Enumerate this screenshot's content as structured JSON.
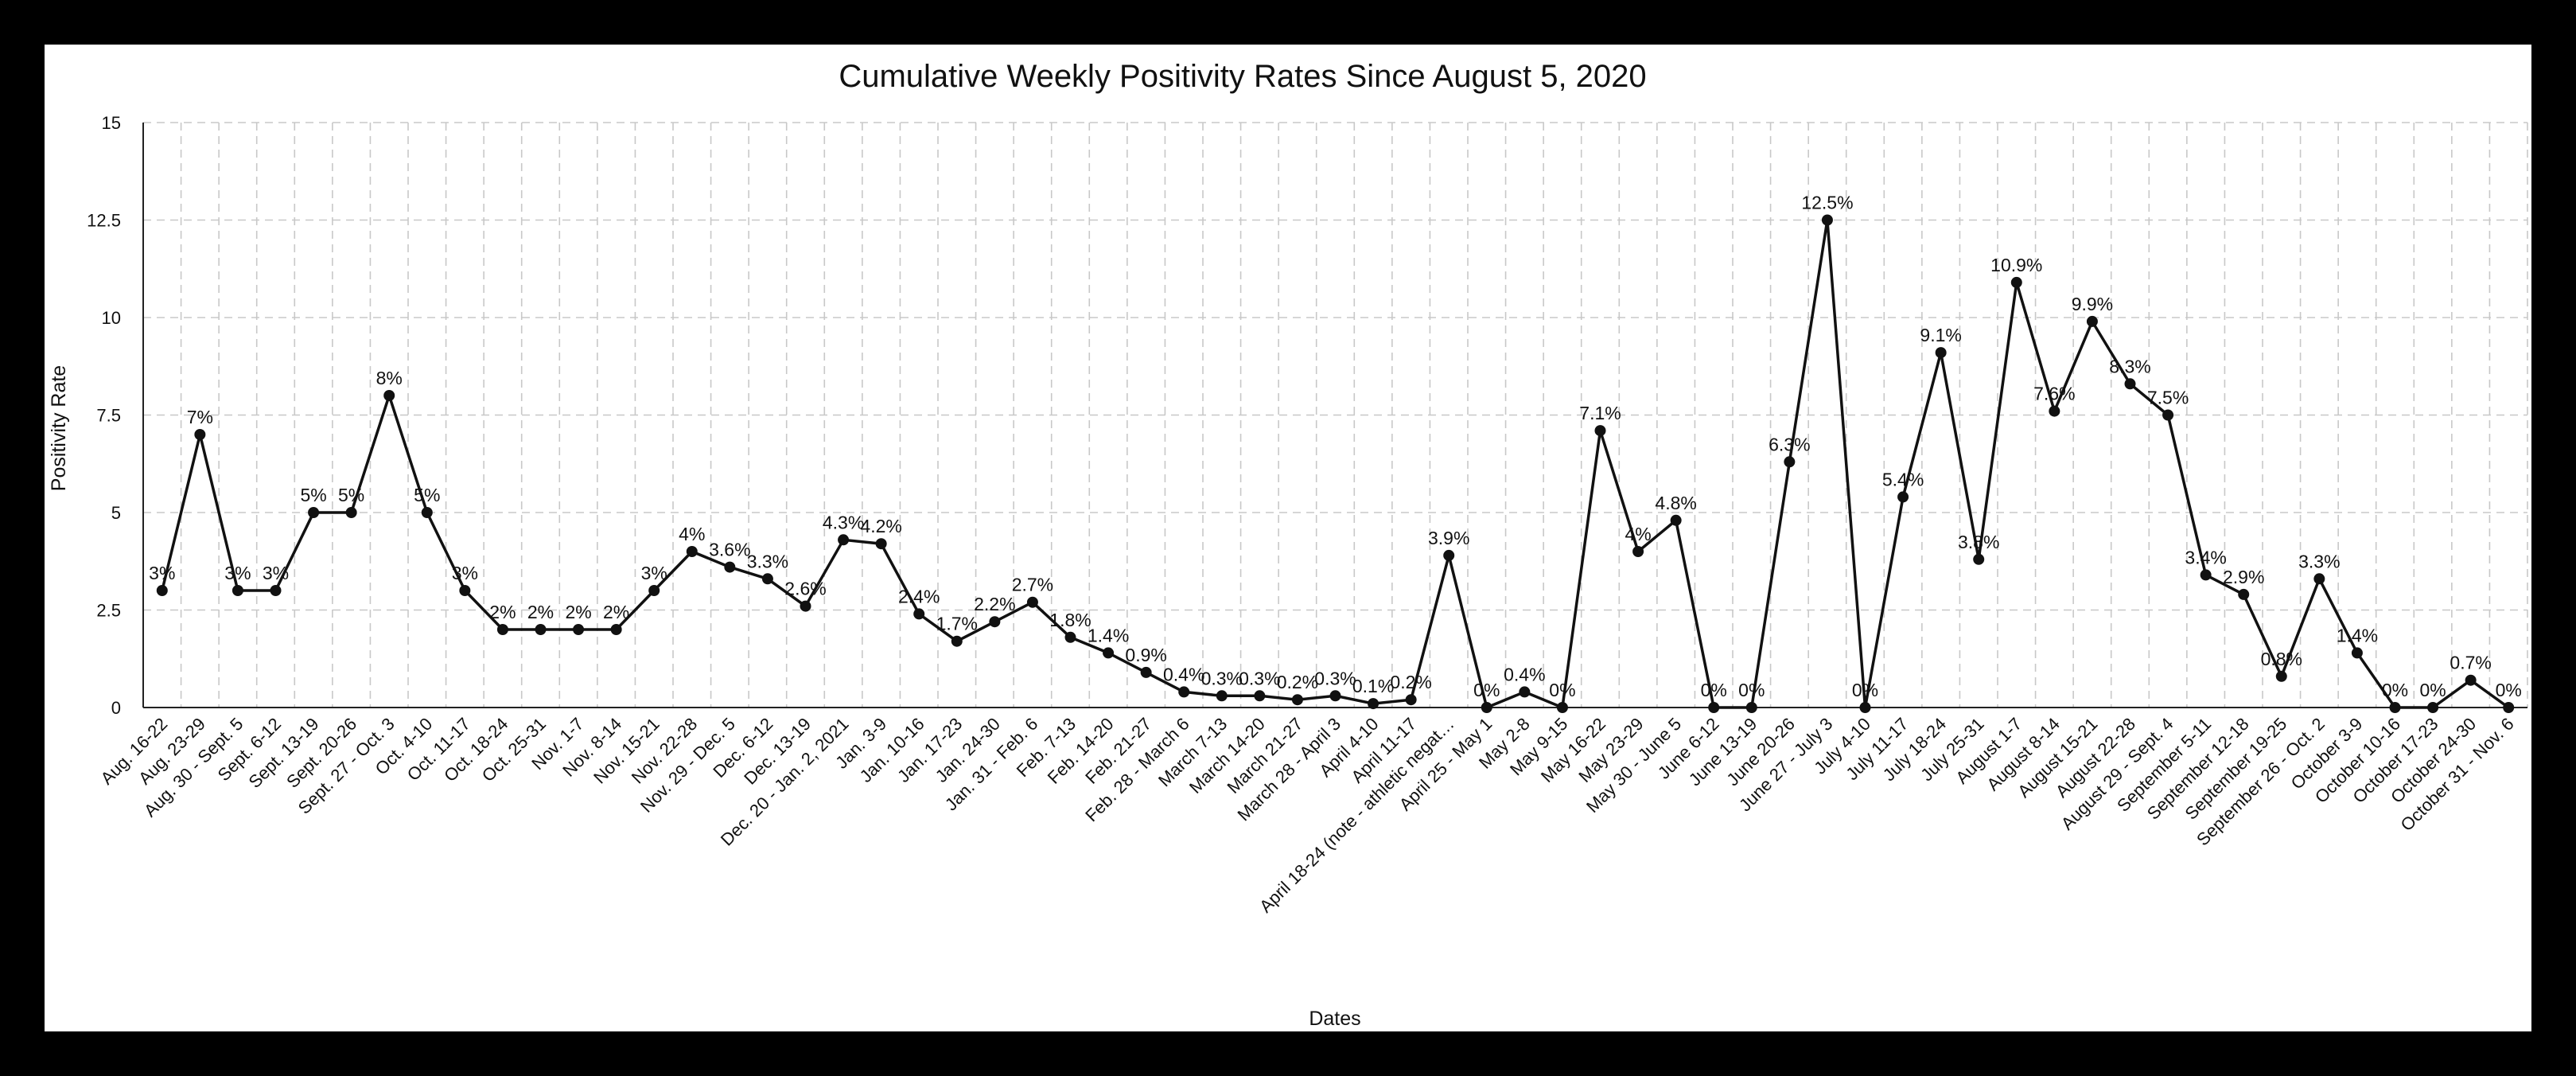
{
  "chart_data": {
    "type": "line",
    "title": "Cumulative Weekly Positivity Rates Since August 5, 2020",
    "xlabel": "Dates",
    "ylabel": "Positivity Rate",
    "ylim": [
      0,
      15
    ],
    "yticks": [
      "0",
      "2.5",
      "5",
      "7.5",
      "10",
      "12.5",
      "15"
    ],
    "grid": true,
    "legend": "none",
    "line_color": "#111111",
    "categories": [
      "Aug. 16-22",
      "Aug. 23-29",
      "Aug. 30 - Sept. 5",
      "Sept. 6-12",
      "Sept. 13-19",
      "Sept. 20-26",
      "Sept. 27 - Oct. 3",
      "Oct. 4-10",
      "Oct. 11-17",
      "Oct. 18-24",
      "Oct. 25-31",
      "Nov. 1-7",
      "Nov. 8-14",
      "Nov. 15-21",
      "Nov. 22-28",
      "Nov. 29 - Dec. 5",
      "Dec. 6-12",
      "Dec. 13-19",
      "Dec. 20 - Jan. 2, 2021",
      "Jan. 3-9",
      "Jan. 10-16",
      "Jan. 17-23",
      "Jan. 24-30",
      "Jan. 31 - Feb. 6",
      "Feb. 7-13",
      "Feb. 14-20",
      "Feb. 21-27",
      "Feb. 28 - March 6",
      "March 7-13",
      "March 14-20",
      "March 21-27",
      "March 28 - April 3",
      "April 4-10",
      "April 11-17",
      "April 18-24 (note - athletic negat…",
      "April 25 - May 1",
      "May 2-8",
      "May 9-15",
      "May 16-22",
      "May 23-29",
      "May 30 - June 5",
      "June 6-12",
      "June 13-19",
      "June 20-26",
      "June 27 - July 3",
      "July 4-10",
      "July 11-17",
      "July 18-24",
      "July 25-31",
      "August 1-7",
      "August 8-14",
      "August 15-21",
      "August 22-28",
      "August 29 - Sept. 4",
      "September 5-11",
      "September 12-18",
      "September 19-25",
      "September 26 - Oct. 2",
      "October 3-9",
      "October 10-16",
      "October 17-23",
      "October 24-30",
      "October 31 - Nov. 6"
    ],
    "values": [
      3,
      7,
      3,
      3,
      5,
      5,
      8,
      5,
      3,
      2,
      2,
      2,
      2,
      3,
      4,
      3.6,
      3.3,
      2.6,
      4.3,
      4.2,
      2.4,
      1.7,
      2.2,
      2.7,
      1.8,
      1.4,
      0.9,
      0.4,
      0.3,
      0.3,
      0.2,
      0.3,
      0.1,
      0.2,
      3.9,
      0,
      0.4,
      0,
      7.1,
      4,
      4.8,
      0,
      0,
      6.3,
      12.5,
      0,
      5.4,
      9.1,
      3.8,
      10.9,
      7.6,
      9.9,
      8.3,
      7.5,
      3.4,
      2.9,
      0.8,
      3.3,
      1.4,
      0,
      0,
      0.7,
      0
    ],
    "data_labels": [
      "3%",
      "7%",
      "3%",
      "3%",
      "5%",
      "5%",
      "8%",
      "5%",
      "3%",
      "2%",
      "2%",
      "2%",
      "2%",
      "3%",
      "4%",
      "3.6%",
      "3.3%",
      "2.6%",
      "4.3%",
      "4.2%",
      "2.4%",
      "1.7%",
      "2.2%",
      "2.7%",
      "1.8%",
      "1.4%",
      "0.9%",
      "0.4%",
      "0.3%",
      "0.3%",
      "0.2%",
      "0.3%",
      "0.1%",
      "0.2%",
      "3.9%",
      "0%",
      "0.4%",
      "0%",
      "7.1%",
      "4%",
      "4.8%",
      "0%",
      "0%",
      "6.3%",
      "12.5%",
      "0%",
      "5.4%",
      "9.1%",
      "3.8%",
      "10.9%",
      "7.6%",
      "9.9%",
      "8.3%",
      "7.5%",
      "3.4%",
      "2.9%",
      "0.8%",
      "3.3%",
      "1.4%",
      "0%",
      "0%",
      "0.7%",
      "0%"
    ]
  }
}
